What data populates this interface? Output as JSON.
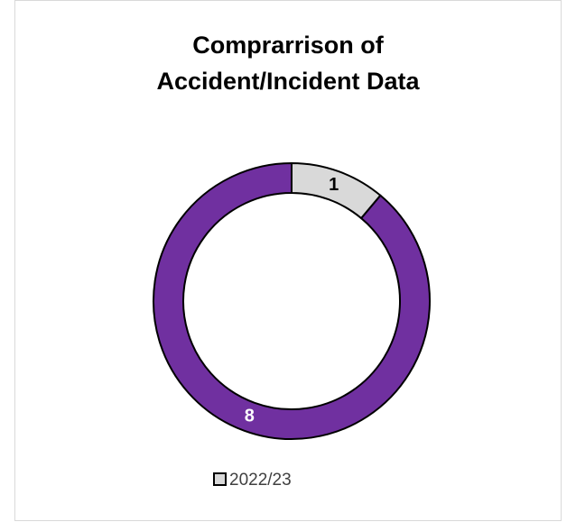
{
  "chart_data": {
    "type": "donut",
    "title": "Comprarrison of Accident/Incident Data",
    "categories": [
      "2022/23",
      null
    ],
    "values": [
      1,
      8
    ],
    "colors": [
      "#d9d9d9",
      "#7030a0"
    ],
    "label_colors": [
      "#000000",
      "#ffffff"
    ],
    "legend": "bottom"
  }
}
